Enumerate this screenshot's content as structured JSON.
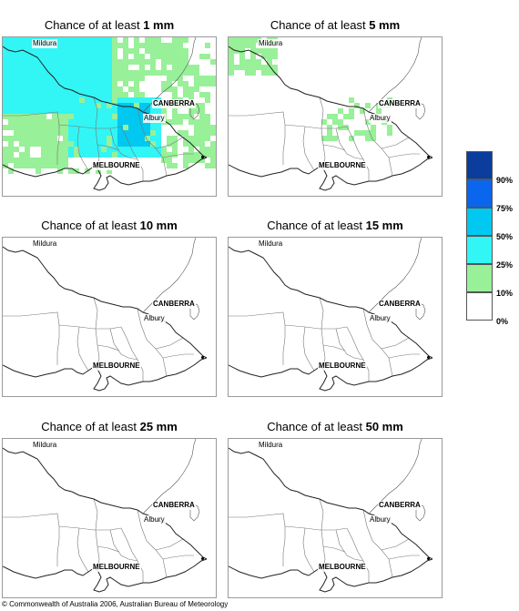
{
  "panels": [
    {
      "title_prefix": "Chance of at least ",
      "amount": "1 mm",
      "coverage": "high"
    },
    {
      "title_prefix": "Chance of at least ",
      "amount": "5 mm",
      "coverage": "low"
    },
    {
      "title_prefix": "Chance of at least ",
      "amount": "10 mm",
      "coverage": "none"
    },
    {
      "title_prefix": "Chance of at least ",
      "amount": "15 mm",
      "coverage": "none"
    },
    {
      "title_prefix": "Chance of at least ",
      "amount": "25 mm",
      "coverage": "none"
    },
    {
      "title_prefix": "Chance of at least ",
      "amount": "50 mm",
      "coverage": "none"
    }
  ],
  "cities": {
    "mildura": "Mildura",
    "canberra": "CANBERRA",
    "albury": "Albury",
    "melbourne": "MELBOURNE"
  },
  "legend": {
    "labels": [
      "90%",
      "75%",
      "50%",
      "25%",
      "10%",
      "0%"
    ],
    "colors": [
      "#0a3d9c",
      "#0a66ee",
      "#00c8f0",
      "#32f5f5",
      "#98f098",
      "#ffffff"
    ]
  },
  "copyright": "© Commonwealth of Australia 2006, Australian Bureau of Meteorology"
}
